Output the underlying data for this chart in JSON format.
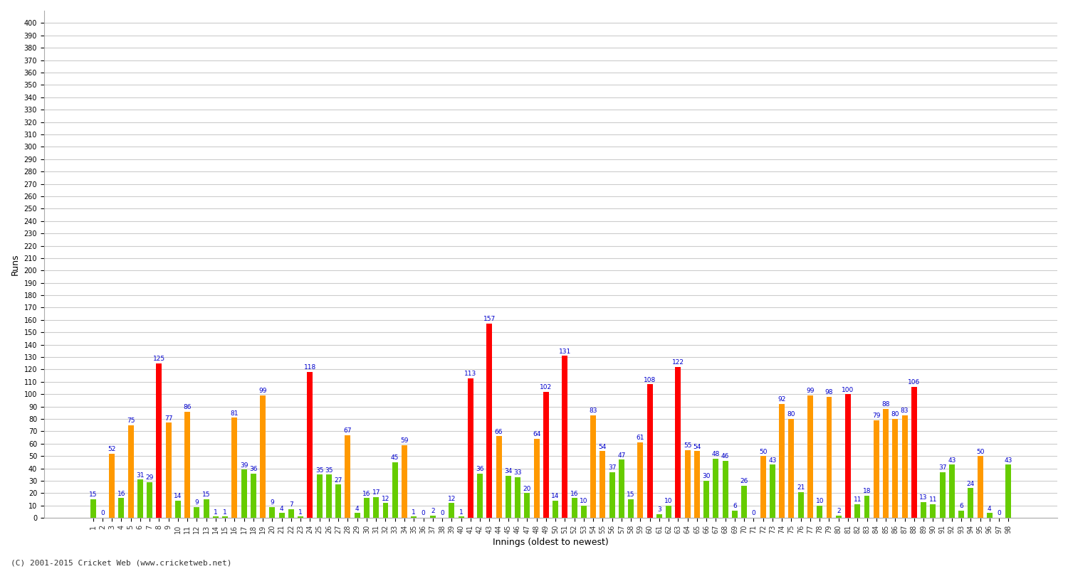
{
  "xlabel": "Innings (oldest to newest)",
  "ylabel": "Runs",
  "footer": "(C) 2001-2015 Cricket Web (www.cricketweb.net)",
  "ylim": [
    0,
    410
  ],
  "ytick_min": 0,
  "ytick_max": 400,
  "ytick_step": 10,
  "background_color": "#ffffff",
  "grid_color": "#cccccc",
  "innings": [
    1,
    2,
    3,
    4,
    5,
    6,
    7,
    8,
    9,
    10,
    11,
    12,
    13,
    14,
    15,
    16,
    17,
    18,
    19,
    20,
    21,
    22,
    23,
    24,
    25,
    26,
    27,
    28,
    29,
    30,
    31,
    32,
    33,
    34,
    35,
    36,
    37,
    38,
    39,
    40,
    41,
    42,
    43,
    44,
    45,
    46,
    47,
    48,
    49,
    50,
    51,
    52,
    53,
    54,
    55,
    56,
    57,
    58,
    59,
    60,
    61,
    62,
    63,
    64,
    65,
    66,
    67,
    68,
    69,
    70,
    71,
    72,
    73,
    74,
    75,
    76,
    77,
    78,
    79,
    80,
    81,
    82,
    83,
    84,
    85,
    86,
    87,
    88,
    89,
    90,
    91,
    92,
    93,
    94,
    95,
    96,
    97,
    98
  ],
  "scores": [
    15,
    0,
    52,
    16,
    75,
    31,
    29,
    125,
    77,
    14,
    86,
    9,
    15,
    1,
    1,
    81,
    39,
    36,
    99,
    9,
    4,
    7,
    1,
    118,
    35,
    35,
    27,
    67,
    4,
    16,
    17,
    12,
    45,
    59,
    1,
    0,
    2,
    0,
    12,
    1,
    113,
    36,
    157,
    66,
    34,
    33,
    20,
    64,
    102,
    14,
    131,
    16,
    10,
    83,
    54,
    37,
    47,
    15,
    61,
    108,
    3,
    10,
    122,
    55,
    54,
    30,
    48,
    46,
    6,
    26,
    0,
    50,
    43,
    92,
    80,
    21,
    99,
    10,
    98,
    2,
    100,
    11,
    18,
    79,
    88,
    80,
    83,
    106,
    13,
    11,
    37,
    43,
    6,
    24,
    50,
    4,
    0,
    43
  ],
  "color_century": "#ff0000",
  "color_fifty": "#ff9900",
  "color_other": "#66cc00",
  "label_color": "#0000cc",
  "label_fontsize": 6.5,
  "tick_fontsize": 7,
  "bar_width": 0.6,
  "figsize": [
    15.0,
    8.0
  ],
  "dpi": 100
}
